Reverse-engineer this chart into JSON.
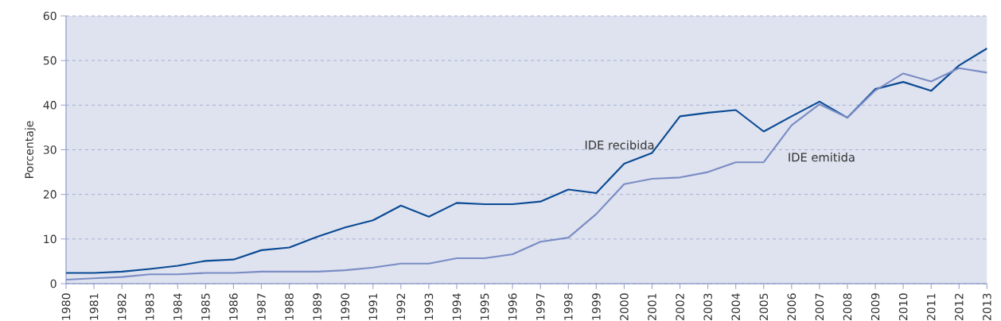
{
  "chart_data": {
    "type": "line",
    "ylabel": "Porcentaje",
    "x": [
      1980,
      1981,
      1982,
      1983,
      1984,
      1985,
      1986,
      1987,
      1988,
      1989,
      1990,
      1991,
      1992,
      1993,
      1994,
      1995,
      1996,
      1997,
      1998,
      1999,
      2000,
      2001,
      2002,
      2003,
      2004,
      2005,
      2006,
      2007,
      2008,
      2009,
      2010,
      2011,
      2012,
      2013
    ],
    "series": [
      {
        "name": "IDE recibida",
        "color": "#0a4a94",
        "values": [
          2.4,
          2.4,
          2.7,
          3.3,
          4.0,
          5.1,
          5.4,
          7.5,
          8.1,
          10.5,
          12.6,
          14.2,
          17.5,
          15.0,
          18.1,
          17.8,
          17.8,
          18.4,
          21.1,
          20.3,
          26.9,
          29.3,
          37.5,
          38.3,
          38.9,
          34.1,
          37.5,
          40.8,
          37.2,
          43.6,
          45.2,
          43.2,
          48.9,
          52.7
        ]
      },
      {
        "name": "IDE emitida",
        "color": "#7a8cc4",
        "values": [
          0.9,
          1.2,
          1.5,
          2.1,
          2.1,
          2.4,
          2.4,
          2.7,
          2.7,
          2.7,
          3.0,
          3.6,
          4.5,
          4.5,
          5.7,
          5.7,
          6.6,
          9.4,
          10.3,
          15.6,
          22.3,
          23.5,
          23.8,
          25.0,
          27.2,
          27.2,
          35.5,
          40.2,
          37.2,
          43.3,
          47.1,
          45.3,
          48.3,
          47.3
        ]
      }
    ],
    "xlim": [
      1980,
      2013
    ],
    "xticks": [
      1980,
      1981,
      1982,
      1983,
      1984,
      1985,
      1986,
      1987,
      1988,
      1989,
      1990,
      1991,
      1992,
      1993,
      1994,
      1995,
      1996,
      1997,
      1998,
      1999,
      2000,
      2001,
      2002,
      2003,
      2004,
      2005,
      2006,
      2007,
      2008,
      2009,
      2010,
      2011,
      2012,
      2013
    ],
    "ylim": [
      0,
      60
    ],
    "yticks": [
      0,
      10,
      20,
      30,
      40,
      50,
      60
    ],
    "grid": "y",
    "marker": "none",
    "line_style": "solid"
  }
}
